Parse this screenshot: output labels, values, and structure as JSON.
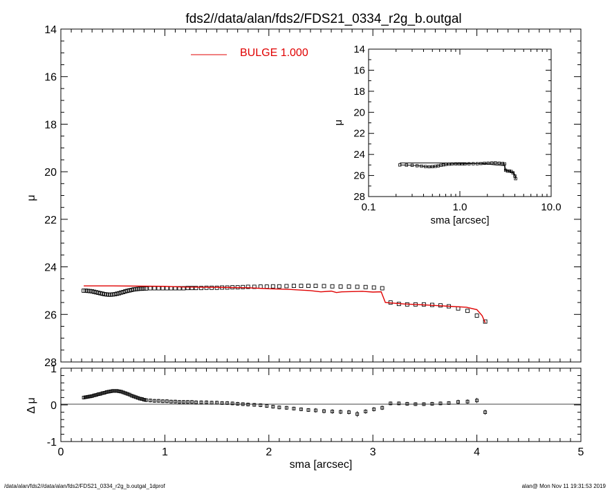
{
  "title": "fds2//data/alan/fds2/FDS21_0334_r2g_b.outgal",
  "footer_left": "/data/alan/fds2//data/alan/fds2/FDS21_0334_r2g_b.outgal_1dprof",
  "footer_right": "alan@  Mon Nov 11 19:31:53 2019",
  "colors": {
    "model": "#e00000",
    "data": "#000000"
  },
  "chart_data": [
    {
      "name": "main-profile",
      "type": "scatter",
      "xlabel": "",
      "ylabel": "μ",
      "xlim": [
        0,
        5
      ],
      "ylim": [
        28,
        14
      ],
      "y_ticks": [
        14,
        16,
        18,
        20,
        22,
        24,
        26,
        28
      ],
      "legend": {
        "label": "BULGE  1.000",
        "position": "top-center"
      },
      "series": [
        {
          "name": "data",
          "style": "open-squares",
          "x": [
            0.22,
            0.24,
            0.26,
            0.28,
            0.3,
            0.32,
            0.34,
            0.36,
            0.38,
            0.4,
            0.42,
            0.44,
            0.46,
            0.48,
            0.5,
            0.52,
            0.54,
            0.56,
            0.58,
            0.6,
            0.62,
            0.64,
            0.66,
            0.68,
            0.7,
            0.72,
            0.74,
            0.76,
            0.78,
            0.8,
            0.82,
            0.86,
            0.9,
            0.94,
            0.98,
            1.02,
            1.06,
            1.1,
            1.14,
            1.18,
            1.22,
            1.26,
            1.3,
            1.35,
            1.4,
            1.45,
            1.5,
            1.55,
            1.6,
            1.65,
            1.7,
            1.75,
            1.8,
            1.86,
            1.92,
            1.98,
            2.04,
            2.1,
            2.17,
            2.24,
            2.31,
            2.38,
            2.45,
            2.53,
            2.61,
            2.69,
            2.77,
            2.85,
            2.93,
            3.01,
            3.09,
            3.17,
            3.25,
            3.33,
            3.41,
            3.49,
            3.57,
            3.65,
            3.73,
            3.82,
            3.91,
            4.0,
            4.08
          ],
          "y": [
            25.0,
            25.0,
            25.01,
            25.02,
            25.03,
            25.05,
            25.07,
            25.09,
            25.11,
            25.13,
            25.15,
            25.16,
            25.17,
            25.17,
            25.16,
            25.15,
            25.13,
            25.11,
            25.08,
            25.06,
            25.03,
            25.01,
            24.99,
            24.97,
            24.95,
            24.94,
            24.93,
            24.92,
            24.92,
            24.91,
            24.91,
            24.9,
            24.9,
            24.9,
            24.9,
            24.9,
            24.9,
            24.9,
            24.9,
            24.9,
            24.89,
            24.89,
            24.89,
            24.89,
            24.88,
            24.88,
            24.88,
            24.87,
            24.87,
            24.86,
            24.86,
            24.85,
            24.84,
            24.84,
            24.83,
            24.83,
            24.82,
            24.82,
            24.81,
            24.8,
            24.8,
            24.8,
            24.8,
            24.81,
            24.82,
            24.83,
            24.83,
            24.84,
            24.85,
            24.87,
            24.9,
            25.5,
            25.56,
            25.58,
            25.58,
            25.58,
            25.6,
            25.62,
            25.66,
            25.75,
            25.85,
            26.05,
            26.3
          ]
        },
        {
          "name": "model",
          "style": "line",
          "x": [
            0.22,
            0.5,
            1.0,
            1.2,
            1.5,
            1.8,
            2.0,
            2.2,
            2.4,
            2.5,
            2.6,
            2.65,
            2.7,
            2.8,
            2.9,
            3.0,
            3.08,
            3.12,
            3.3,
            3.5,
            3.7,
            3.9,
            4.0,
            4.05,
            4.08
          ],
          "y": [
            24.8,
            24.8,
            24.82,
            24.85,
            24.86,
            24.88,
            24.92,
            24.95,
            25.0,
            25.05,
            25.02,
            25.08,
            25.05,
            25.04,
            25.03,
            25.06,
            25.05,
            25.5,
            25.56,
            25.6,
            25.65,
            25.7,
            25.8,
            26.05,
            26.35
          ]
        }
      ]
    },
    {
      "name": "residuals",
      "type": "scatter",
      "xlabel": "sma [arcsec]",
      "ylabel": "Δ μ",
      "xlim": [
        0,
        5
      ],
      "ylim": [
        -1,
        1
      ],
      "x_ticks": [
        0,
        1,
        2,
        3,
        4,
        5
      ],
      "y_ticks": [
        -1,
        0,
        1
      ],
      "series": [
        {
          "name": "residual",
          "style": "open-squares-with-errorbars",
          "x": [
            0.22,
            0.24,
            0.26,
            0.28,
            0.3,
            0.32,
            0.34,
            0.36,
            0.38,
            0.4,
            0.42,
            0.44,
            0.46,
            0.48,
            0.5,
            0.52,
            0.54,
            0.56,
            0.58,
            0.6,
            0.62,
            0.64,
            0.66,
            0.68,
            0.7,
            0.72,
            0.74,
            0.76,
            0.78,
            0.8,
            0.82,
            0.86,
            0.9,
            0.94,
            0.98,
            1.02,
            1.06,
            1.1,
            1.14,
            1.18,
            1.22,
            1.26,
            1.3,
            1.35,
            1.4,
            1.45,
            1.5,
            1.55,
            1.6,
            1.65,
            1.7,
            1.75,
            1.8,
            1.86,
            1.92,
            1.98,
            2.04,
            2.1,
            2.17,
            2.24,
            2.31,
            2.38,
            2.45,
            2.53,
            2.61,
            2.69,
            2.77,
            2.85,
            2.93,
            3.01,
            3.09,
            3.17,
            3.25,
            3.33,
            3.41,
            3.49,
            3.57,
            3.65,
            3.73,
            3.82,
            3.91,
            4.0,
            4.08
          ],
          "y": [
            0.2,
            0.21,
            0.22,
            0.23,
            0.24,
            0.26,
            0.27,
            0.29,
            0.3,
            0.32,
            0.33,
            0.35,
            0.36,
            0.37,
            0.38,
            0.38,
            0.38,
            0.37,
            0.36,
            0.34,
            0.32,
            0.3,
            0.28,
            0.25,
            0.23,
            0.21,
            0.19,
            0.17,
            0.16,
            0.14,
            0.13,
            0.12,
            0.11,
            0.11,
            0.1,
            0.1,
            0.09,
            0.09,
            0.08,
            0.08,
            0.08,
            0.08,
            0.07,
            0.07,
            0.07,
            0.06,
            0.06,
            0.05,
            0.05,
            0.04,
            0.03,
            0.02,
            0.01,
            0.0,
            -0.01,
            -0.03,
            -0.05,
            -0.07,
            -0.08,
            -0.1,
            -0.12,
            -0.14,
            -0.15,
            -0.17,
            -0.18,
            -0.19,
            -0.2,
            -0.25,
            -0.18,
            -0.12,
            -0.08,
            0.04,
            0.04,
            0.03,
            0.02,
            0.02,
            0.03,
            0.04,
            0.05,
            0.08,
            0.09,
            0.12,
            -0.2
          ],
          "err": [
            0.05,
            0.05,
            0.05,
            0.05,
            0.05,
            0.05,
            0.05,
            0.05,
            0.05,
            0.05,
            0.05,
            0.05,
            0.05,
            0.05,
            0.05,
            0.05,
            0.05,
            0.05,
            0.05,
            0.05,
            0.05,
            0.05,
            0.05,
            0.05,
            0.05,
            0.05,
            0.05,
            0.05,
            0.05,
            0.05,
            0.05,
            0.05,
            0.05,
            0.05,
            0.05,
            0.05,
            0.05,
            0.05,
            0.05,
            0.05,
            0.05,
            0.05,
            0.05,
            0.05,
            0.05,
            0.05,
            0.05,
            0.05,
            0.05,
            0.05,
            0.05,
            0.05,
            0.05,
            0.05,
            0.05,
            0.05,
            0.05,
            0.05,
            0.05,
            0.05,
            0.05,
            0.05,
            0.06,
            0.06,
            0.06,
            0.06,
            0.06,
            0.08,
            0.06,
            0.06,
            0.06,
            0.05,
            0.05,
            0.05,
            0.05,
            0.05,
            0.05,
            0.05,
            0.05,
            0.06,
            0.06,
            0.07,
            0.07
          ]
        }
      ]
    },
    {
      "name": "inset-log-profile",
      "type": "scatter",
      "xlabel": "sma [arcsec]",
      "ylabel": "μ",
      "x_scale": "log",
      "xlim": [
        0.1,
        10.0
      ],
      "ylim": [
        28,
        14
      ],
      "x_ticks": [
        "0.1",
        "1.0",
        "10.0"
      ],
      "y_ticks": [
        14,
        16,
        18,
        20,
        22,
        24,
        26,
        28
      ],
      "series": [
        {
          "name": "data",
          "style": "open-squares-with-line",
          "x": [
            0.22,
            0.26,
            0.3,
            0.34,
            0.38,
            0.42,
            0.46,
            0.5,
            0.54,
            0.58,
            0.62,
            0.66,
            0.7,
            0.76,
            0.82,
            0.9,
            0.98,
            1.06,
            1.14,
            1.26,
            1.4,
            1.55,
            1.7,
            1.86,
            2.04,
            2.24,
            2.45,
            2.69,
            2.93,
            3.09,
            3.17,
            3.33,
            3.49,
            3.65,
            3.82,
            4.0,
            4.08
          ],
          "y": [
            25.0,
            25.01,
            25.03,
            25.07,
            25.11,
            25.15,
            25.17,
            25.16,
            25.13,
            25.08,
            25.03,
            24.99,
            24.95,
            24.92,
            24.91,
            24.9,
            24.9,
            24.9,
            24.9,
            24.89,
            24.88,
            24.88,
            24.86,
            24.84,
            24.83,
            24.81,
            24.8,
            24.83,
            24.85,
            24.9,
            25.5,
            25.58,
            25.58,
            25.62,
            25.75,
            26.05,
            26.3
          ]
        },
        {
          "name": "model",
          "style": "line",
          "x": [
            0.22,
            0.5,
            1.0,
            1.5,
            2.0,
            2.6,
            3.0,
            3.08,
            3.12,
            3.5,
            3.9,
            4.05,
            4.08
          ],
          "y": [
            24.8,
            24.8,
            24.82,
            24.86,
            24.92,
            25.02,
            25.06,
            25.05,
            25.5,
            25.6,
            25.7,
            26.05,
            26.35
          ]
        }
      ]
    }
  ]
}
